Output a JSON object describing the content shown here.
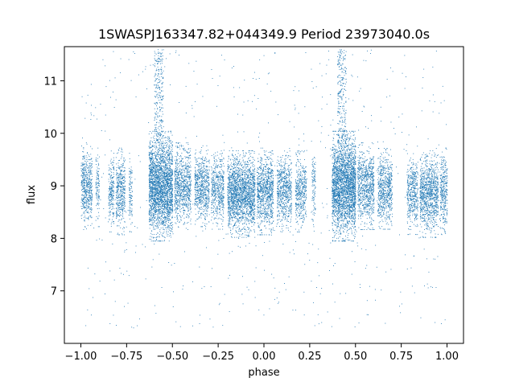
{
  "chart_data": {
    "type": "scatter",
    "title": "1SWASPJ163347.82+044349.9 Period 23973040.0s",
    "xlabel": "phase",
    "ylabel": "flux",
    "xlim": [
      -1.09,
      1.09
    ],
    "ylim": [
      6.0,
      11.65
    ],
    "xticks": [
      -1.0,
      -0.75,
      -0.5,
      -0.25,
      0.0,
      0.25,
      0.5,
      0.75,
      1.0
    ],
    "xtick_labels": [
      "−1.00",
      "−0.75",
      "−0.50",
      "−0.25",
      "0.00",
      "0.25",
      "0.50",
      "0.75",
      "1.00"
    ],
    "yticks": [
      7,
      8,
      9,
      10,
      11
    ],
    "ytick_labels": [
      "7",
      "8",
      "9",
      "10",
      "11"
    ],
    "grid": false,
    "legend": "none",
    "marker_color": "#1f77b4",
    "series": [
      {
        "clusters": [
          {
            "x": [
              -1.0,
              -0.94
            ],
            "center": 9.0,
            "spread": 0.75,
            "density": 1.0
          },
          {
            "x": [
              -0.92,
              -0.9
            ],
            "center": 9.0,
            "spread": 0.7,
            "density": 0.6
          },
          {
            "x": [
              -0.85,
              -0.82
            ],
            "center": 8.9,
            "spread": 0.7,
            "density": 0.8
          },
          {
            "x": [
              -0.81,
              -0.76
            ],
            "center": 8.9,
            "spread": 0.75,
            "density": 0.9
          },
          {
            "x": [
              -0.74,
              -0.72
            ],
            "center": 8.9,
            "spread": 0.7,
            "density": 0.6
          },
          {
            "x": [
              -0.63,
              -0.5
            ],
            "center": 9.0,
            "spread": 0.95,
            "density": 2.2
          },
          {
            "x": [
              -0.49,
              -0.4
            ],
            "center": 9.0,
            "spread": 0.75,
            "density": 1.0
          },
          {
            "x": [
              -0.38,
              -0.3
            ],
            "center": 9.0,
            "spread": 0.7,
            "density": 0.9
          },
          {
            "x": [
              -0.29,
              -0.22
            ],
            "center": 8.95,
            "spread": 0.7,
            "density": 0.8
          },
          {
            "x": [
              -0.2,
              -0.05
            ],
            "center": 8.85,
            "spread": 0.75,
            "density": 1.4
          },
          {
            "x": [
              -0.04,
              0.05
            ],
            "center": 8.9,
            "spread": 0.75,
            "density": 1.1
          },
          {
            "x": [
              0.07,
              0.15
            ],
            "center": 8.9,
            "spread": 0.7,
            "density": 0.9
          },
          {
            "x": [
              0.17,
              0.23
            ],
            "center": 8.9,
            "spread": 0.7,
            "density": 0.8
          },
          {
            "x": [
              0.26,
              0.28
            ],
            "center": 9.0,
            "spread": 0.7,
            "density": 0.6
          },
          {
            "x": [
              0.37,
              0.5
            ],
            "center": 9.0,
            "spread": 0.95,
            "density": 2.2
          },
          {
            "x": [
              0.51,
              0.6
            ],
            "center": 9.0,
            "spread": 0.75,
            "density": 1.0
          },
          {
            "x": [
              0.62,
              0.7
            ],
            "center": 8.95,
            "spread": 0.7,
            "density": 0.9
          },
          {
            "x": [
              0.78,
              0.84
            ],
            "center": 8.85,
            "spread": 0.7,
            "density": 0.8
          },
          {
            "x": [
              0.85,
              0.95
            ],
            "center": 8.85,
            "spread": 0.75,
            "density": 1.1
          },
          {
            "x": [
              0.96,
              1.0
            ],
            "center": 8.9,
            "spread": 0.75,
            "density": 0.9
          }
        ],
        "flares": [
          {
            "x": [
              -0.6,
              -0.55
            ],
            "y": [
              9.8,
              11.6
            ]
          },
          {
            "x": [
              0.4,
              0.45
            ],
            "y": [
              9.8,
              11.6
            ]
          }
        ],
        "outlier_range": [
          6.3,
          11.6
        ]
      }
    ]
  }
}
